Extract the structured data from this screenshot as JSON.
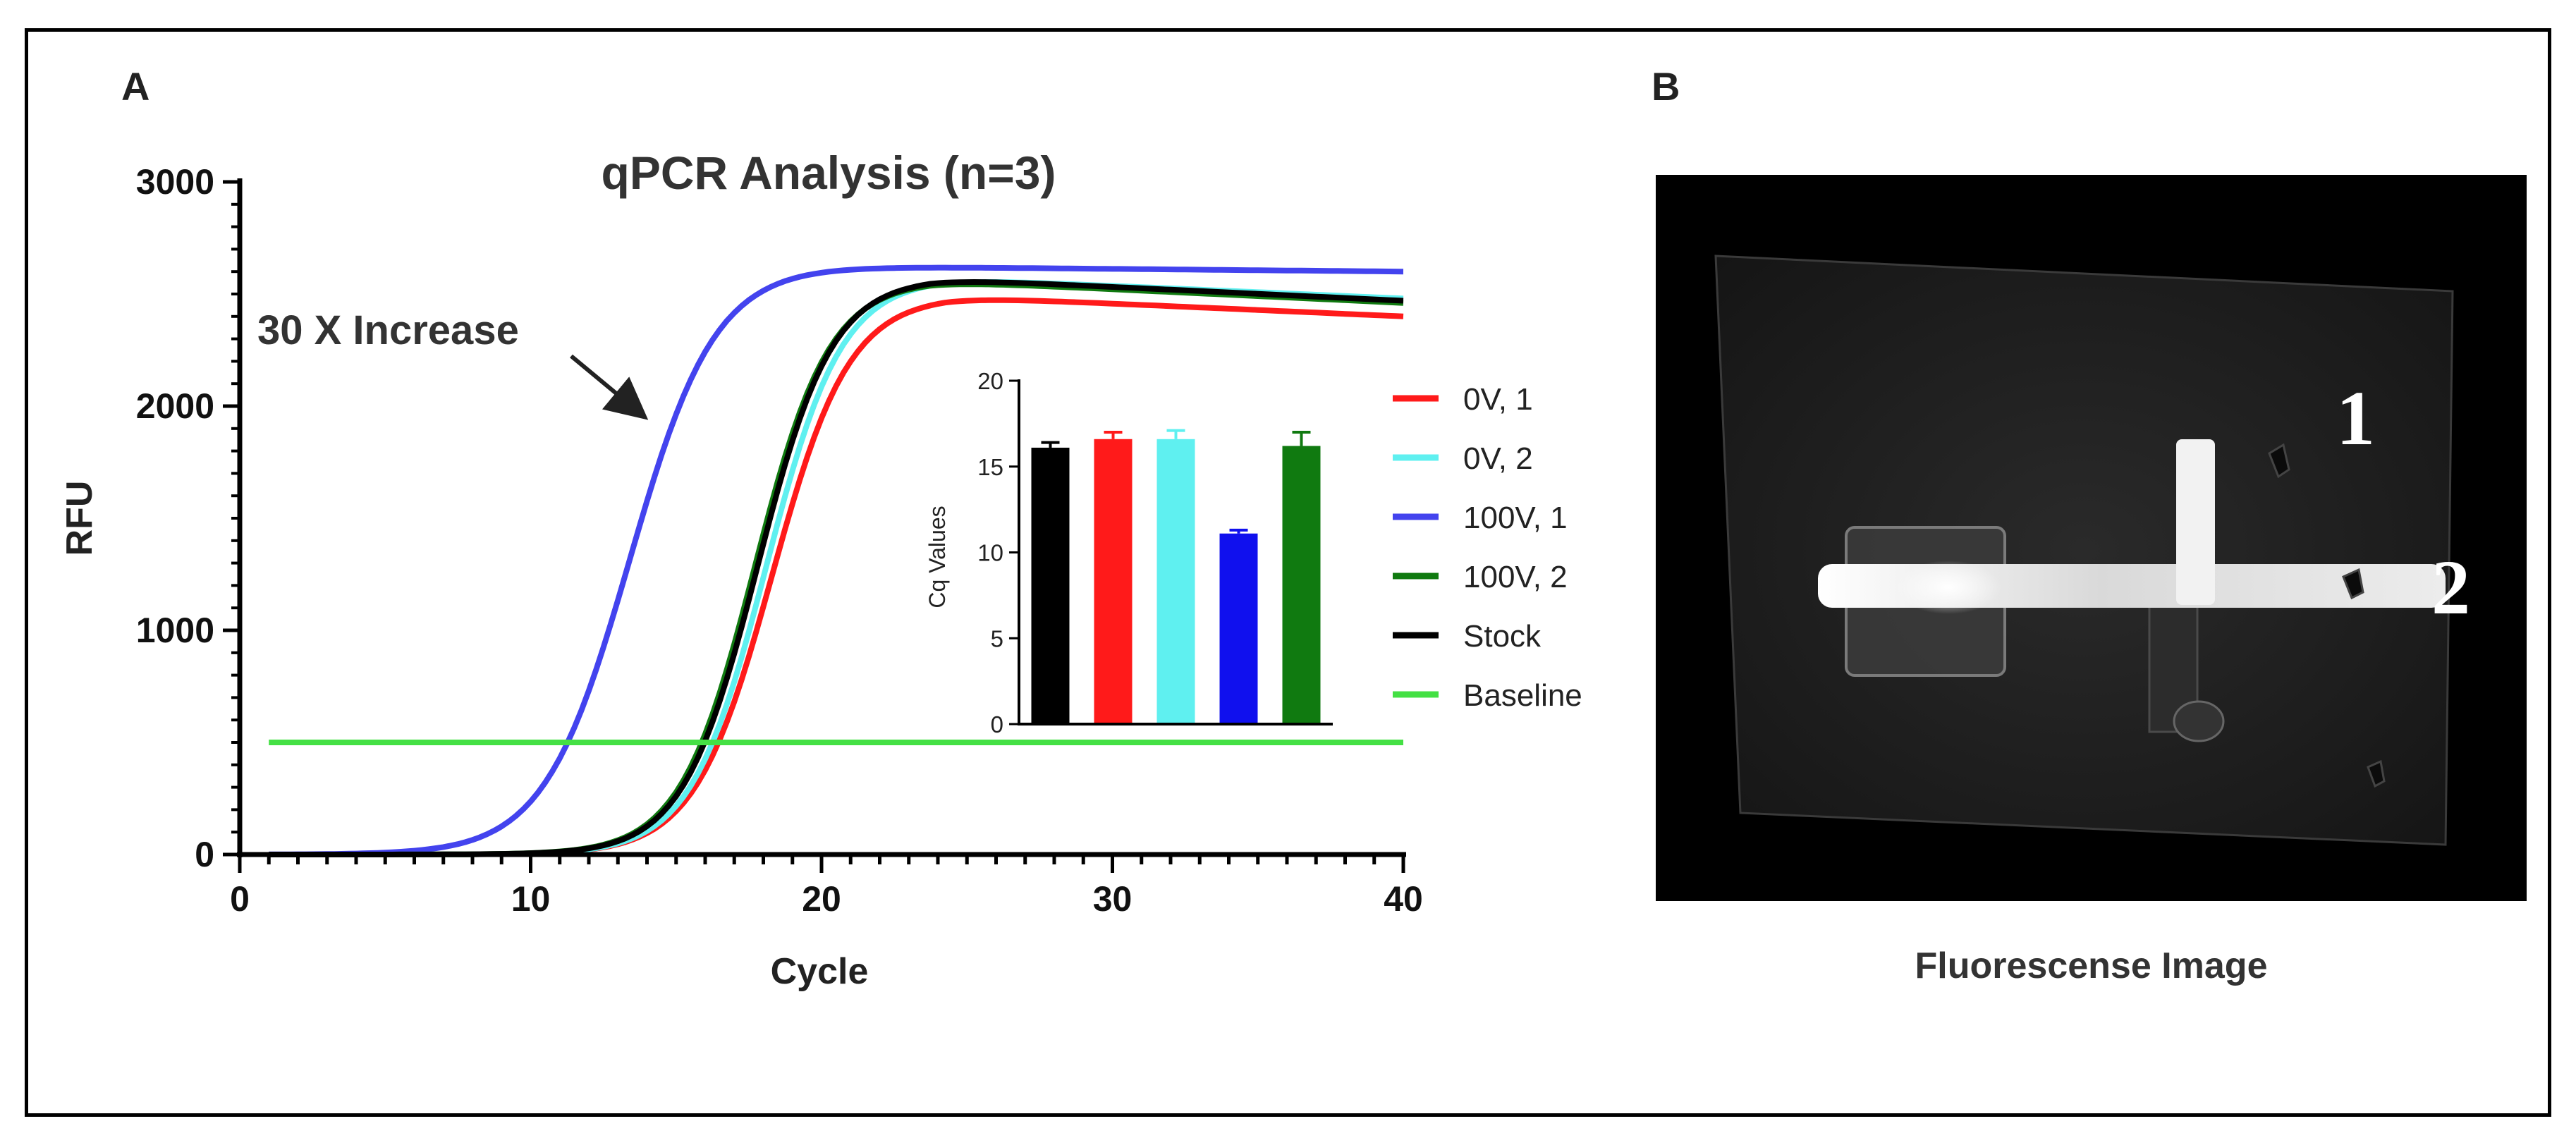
{
  "panels": {
    "a_label": "A",
    "b_label": "B"
  },
  "annotation": {
    "text": "30 X Increase"
  },
  "chart_data": [
    {
      "type": "line",
      "title": "qPCR Analysis (n=3)",
      "xlabel": "Cycle",
      "ylabel": "RFU",
      "xlim": [
        0,
        40
      ],
      "ylim": [
        0,
        3000
      ],
      "x_ticks": [
        0,
        10,
        20,
        30,
        40
      ],
      "y_ticks": [
        0,
        1000,
        2000,
        3000
      ],
      "grid": false,
      "legend_position": "right",
      "series": [
        {
          "name": "0V, 1",
          "color": "#ff1a1a",
          "plateau": 2490,
          "midpoint": 18.3,
          "slope": 0.75,
          "end": 2400
        },
        {
          "name": "0V, 2",
          "color": "#5ff0f0",
          "plateau": 2570,
          "midpoint": 18.1,
          "slope": 0.77,
          "end": 2480
        },
        {
          "name": "100V, 1",
          "color": "#4343ee",
          "plateau": 2625,
          "midpoint": 13.4,
          "slope": 0.68,
          "end": 2600
        },
        {
          "name": "100V, 2",
          "color": "#107a10",
          "plateau": 2560,
          "midpoint": 17.7,
          "slope": 0.78,
          "end": 2460
        },
        {
          "name": "Stock",
          "color": "#000000",
          "plateau": 2570,
          "midpoint": 17.8,
          "slope": 0.78,
          "end": 2470
        },
        {
          "name": "Baseline",
          "color": "#44e044",
          "value": 500
        }
      ]
    },
    {
      "type": "bar",
      "ylabel": "Cq Values",
      "ylim": [
        0,
        20
      ],
      "y_ticks": [
        0,
        5,
        10,
        15,
        20
      ],
      "categories": [
        "Stock",
        "0V, 1",
        "0V, 2",
        "100V, 1",
        "100V, 2"
      ],
      "values": [
        16.1,
        16.6,
        16.6,
        11.1,
        16.2
      ],
      "errors": [
        0.3,
        0.4,
        0.5,
        0.2,
        0.8
      ],
      "colors": [
        "#000000",
        "#ff1a1a",
        "#5ff0f0",
        "#1010ee",
        "#107a10"
      ]
    }
  ],
  "fluorescence": {
    "caption": "Fluorescense Image",
    "labels": [
      "1",
      "2"
    ]
  }
}
